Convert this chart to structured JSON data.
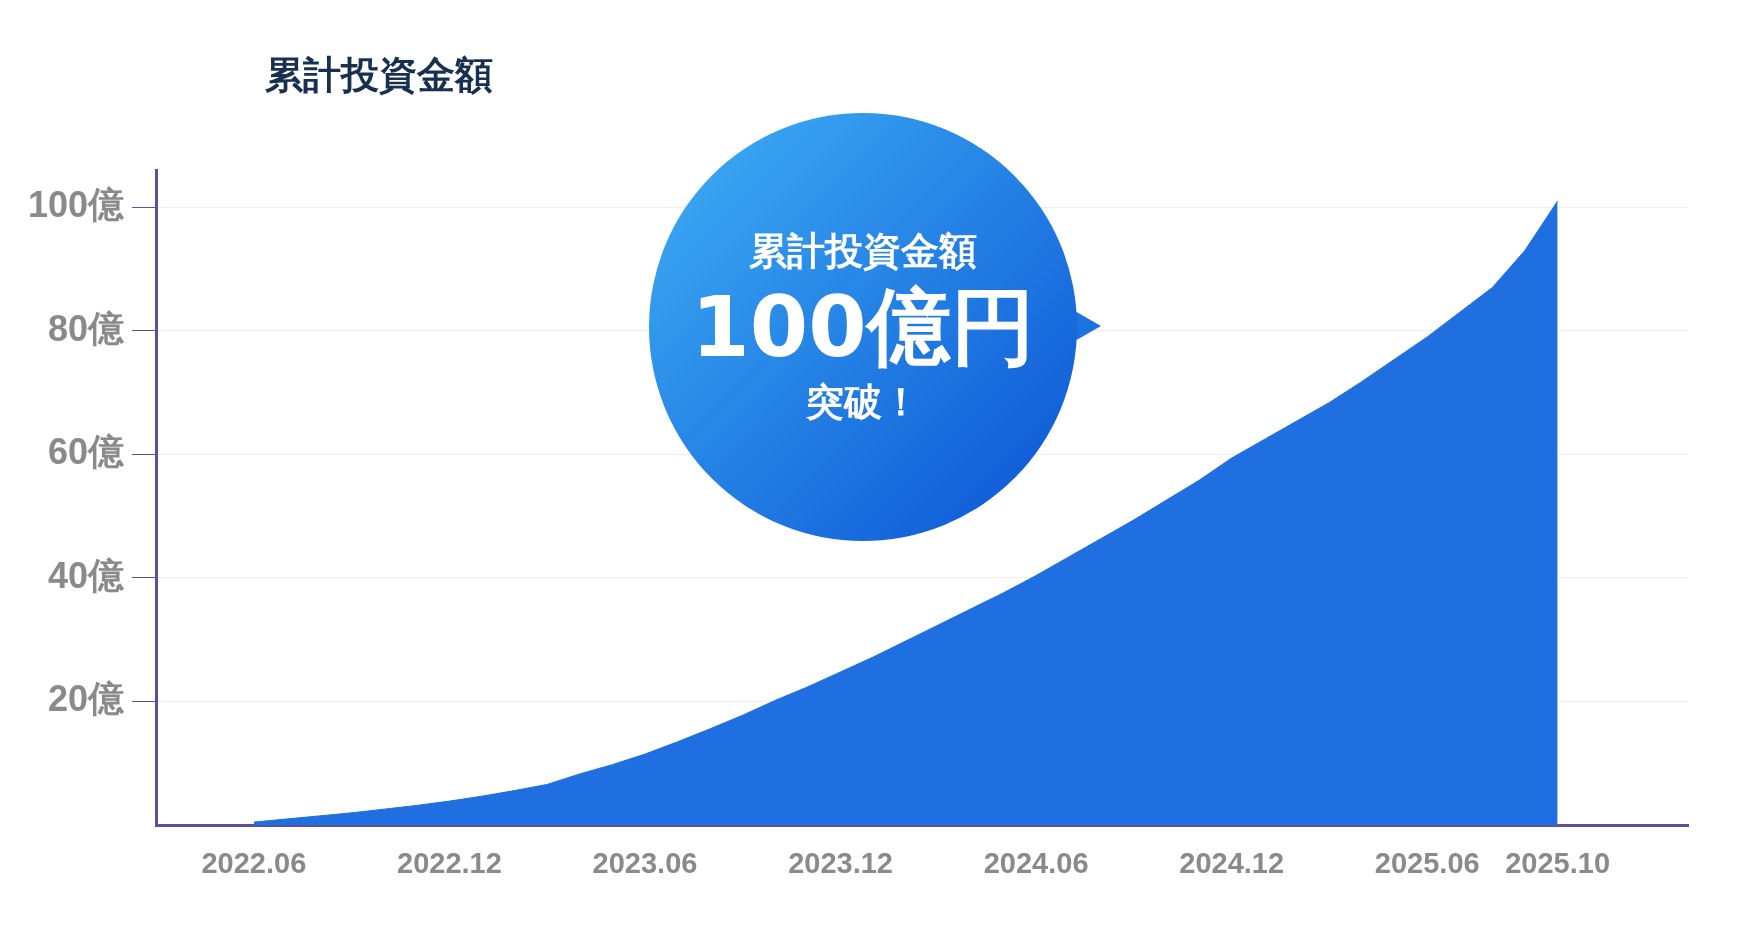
{
  "chart_data": {
    "type": "area",
    "title": "累計投資金額",
    "x": [
      "2022-06",
      "2022-07",
      "2022-08",
      "2022-09",
      "2022-10",
      "2022-11",
      "2022-12",
      "2023-01",
      "2023-02",
      "2023-03",
      "2023-04",
      "2023-05",
      "2023-06",
      "2023-07",
      "2023-08",
      "2023-09",
      "2023-10",
      "2023-11",
      "2023-12",
      "2024-01",
      "2024-02",
      "2024-03",
      "2024-04",
      "2024-05",
      "2024-06",
      "2024-07",
      "2024-08",
      "2024-09",
      "2024-10",
      "2024-11",
      "2024-12",
      "2025-01",
      "2025-02",
      "2025-03",
      "2025-04",
      "2025-05",
      "2025-06",
      "2025-07",
      "2025-08",
      "2025-09",
      "2025-10"
    ],
    "series": [
      {
        "color": "#1f6fe0",
        "values": [
          0.5,
          1.0,
          1.5,
          2.0,
          2.6,
          3.2,
          3.9,
          4.7,
          5.6,
          6.6,
          8.3,
          9.8,
          11.5,
          13.5,
          15.6,
          17.8,
          20.2,
          22.4,
          24.8,
          27.2,
          29.8,
          32.4,
          35,
          37.6,
          40.4,
          43.4,
          46.4,
          49.4,
          52.6,
          55.8,
          59.4,
          62.4,
          65.4,
          68.4,
          71.8,
          75.4,
          79,
          83,
          87,
          93,
          101
        ]
      }
    ],
    "xlim": [
      "2022-03",
      "2026-02"
    ],
    "xticks": [
      {
        "value": "2022-06",
        "label": "2022.06"
      },
      {
        "value": "2022-12",
        "label": "2022.12"
      },
      {
        "value": "2023-06",
        "label": "2023.06"
      },
      {
        "value": "2023-12",
        "label": "2023.12"
      },
      {
        "value": "2024-06",
        "label": "2024.06"
      },
      {
        "value": "2024-12",
        "label": "2024.12"
      },
      {
        "value": "2025-06",
        "label": "2025.06"
      },
      {
        "value": "2025-10",
        "label": "2025.10"
      }
    ],
    "ylim": [
      0,
      106
    ],
    "yticks": [
      {
        "value": 20,
        "label": "20億"
      },
      {
        "value": 40,
        "label": "40億"
      },
      {
        "value": 60,
        "label": "60億"
      },
      {
        "value": 80,
        "label": "80億"
      },
      {
        "value": 100,
        "label": "100億"
      }
    ],
    "grid": "y",
    "legend": false,
    "annotations": [
      "累計投資金額",
      "100億円",
      "突破！"
    ]
  }
}
